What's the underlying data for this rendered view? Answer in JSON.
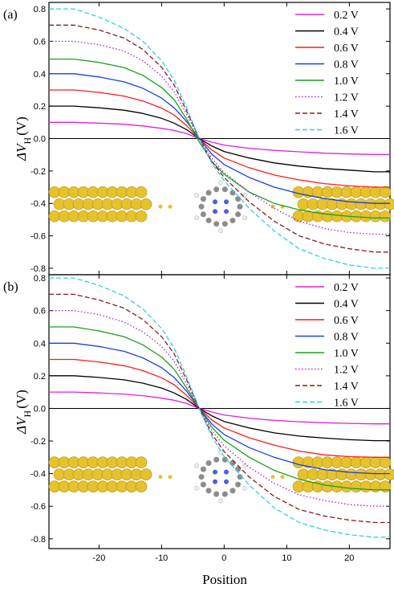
{
  "figure": {
    "xlabel": "Position",
    "ylabel_main": "ΔV",
    "ylabel_sub": "H",
    "ylabel_unit": "(V)"
  },
  "chart_data": [
    {
      "type": "line",
      "panel_label": "(a)",
      "xlim": [
        -28,
        26.5
      ],
      "ylim": [
        -0.84,
        0.84
      ],
      "xticks": [
        -20,
        -10,
        0,
        10,
        20
      ],
      "yticks": [
        0.8,
        0.6,
        0.4,
        0.2,
        0.0,
        -0.2,
        -0.4,
        -0.6,
        -0.8
      ],
      "ytick_labels": [
        "0.8",
        "0.6",
        "0.4",
        "0.2",
        "0.0",
        "-0.2",
        "-0.4",
        "-0.6",
        "-0.8"
      ],
      "legend_position": "top-right",
      "x": [
        -28,
        -24,
        -20,
        -16,
        -13,
        -10,
        -8,
        -6,
        -4,
        -2,
        0,
        4,
        8,
        12,
        16,
        20,
        24,
        26.5
      ],
      "series": [
        {
          "name": "0.2 V",
          "color": "#e020e0",
          "dash": "solid",
          "values": [
            0.1,
            0.1,
            0.095,
            0.088,
            0.078,
            0.063,
            0.05,
            0.03,
            0.0,
            -0.022,
            -0.04,
            -0.06,
            -0.073,
            -0.082,
            -0.09,
            -0.095,
            -0.098,
            -0.098
          ]
        },
        {
          "name": "0.4 V",
          "color": "#000000",
          "dash": "solid",
          "values": [
            0.2,
            0.2,
            0.19,
            0.175,
            0.155,
            0.125,
            0.095,
            0.055,
            0.0,
            -0.045,
            -0.08,
            -0.12,
            -0.15,
            -0.17,
            -0.185,
            -0.195,
            -0.205,
            -0.205
          ]
        },
        {
          "name": "0.6 V",
          "color": "#ff1a1a",
          "dash": "solid",
          "values": [
            0.3,
            0.3,
            0.285,
            0.262,
            0.232,
            0.188,
            0.145,
            0.08,
            0.0,
            -0.07,
            -0.12,
            -0.18,
            -0.225,
            -0.255,
            -0.278,
            -0.292,
            -0.3,
            -0.3
          ]
        },
        {
          "name": "0.8 V",
          "color": "#1a3fe0",
          "dash": "solid",
          "values": [
            0.4,
            0.4,
            0.38,
            0.35,
            0.31,
            0.25,
            0.19,
            0.105,
            0.0,
            -0.095,
            -0.16,
            -0.24,
            -0.3,
            -0.34,
            -0.37,
            -0.39,
            -0.4,
            -0.4
          ]
        },
        {
          "name": "1.0 V",
          "color": "#1aa01a",
          "dash": "solid",
          "values": [
            0.49,
            0.49,
            0.47,
            0.438,
            0.39,
            0.315,
            0.24,
            0.12,
            -0.02,
            -0.14,
            -0.22,
            -0.33,
            -0.4,
            -0.44,
            -0.465,
            -0.48,
            -0.49,
            -0.49
          ]
        },
        {
          "name": "1.2 V",
          "color": "#a020e0",
          "dash": "dotted",
          "values": [
            0.6,
            0.6,
            0.58,
            0.54,
            0.48,
            0.385,
            0.29,
            0.15,
            0.0,
            -0.12,
            -0.21,
            -0.33,
            -0.43,
            -0.51,
            -0.555,
            -0.58,
            -0.59,
            -0.59
          ]
        },
        {
          "name": "1.4 V",
          "color": "#8b1a1a",
          "dash": "dashed",
          "values": [
            0.7,
            0.7,
            0.67,
            0.62,
            0.55,
            0.44,
            0.33,
            0.17,
            0.0,
            -0.14,
            -0.24,
            -0.39,
            -0.51,
            -0.6,
            -0.65,
            -0.68,
            -0.7,
            -0.7
          ]
        },
        {
          "name": "1.6 V",
          "color": "#30d0e0",
          "dash": "dashed",
          "values": [
            0.8,
            0.8,
            0.75,
            0.68,
            0.6,
            0.48,
            0.36,
            0.19,
            0.0,
            -0.15,
            -0.26,
            -0.43,
            -0.57,
            -0.68,
            -0.74,
            -0.78,
            -0.8,
            -0.8
          ]
        }
      ]
    },
    {
      "type": "line",
      "panel_label": "(b)",
      "xlim": [
        -28,
        26.5
      ],
      "ylim": [
        -0.86,
        0.82
      ],
      "xticks": [
        -20,
        -10,
        0,
        10,
        20
      ],
      "xtick_labels": [
        "-20",
        "-10",
        "0",
        "10",
        "20"
      ],
      "yticks": [
        0.8,
        0.6,
        0.4,
        0.2,
        0.0,
        -0.2,
        -0.4,
        -0.6,
        -0.8
      ],
      "ytick_labels": [
        "0.8",
        "0.6",
        "0.4",
        "0.2",
        "0.0",
        "-0.2",
        "-0.4",
        "-0.6",
        "-0.8"
      ],
      "legend_position": "top-right",
      "x": [
        -28,
        -24,
        -20,
        -16,
        -13,
        -10,
        -8,
        -6,
        -4,
        -2,
        0,
        4,
        8,
        12,
        16,
        20,
        24,
        26.5
      ],
      "series": [
        {
          "name": "0.2 V",
          "color": "#e020e0",
          "dash": "solid",
          "values": [
            0.1,
            0.1,
            0.095,
            0.088,
            0.078,
            0.063,
            0.05,
            0.03,
            0.0,
            -0.022,
            -0.04,
            -0.06,
            -0.073,
            -0.082,
            -0.088,
            -0.092,
            -0.095,
            -0.095
          ]
        },
        {
          "name": "0.4 V",
          "color": "#000000",
          "dash": "solid",
          "values": [
            0.2,
            0.2,
            0.19,
            0.175,
            0.155,
            0.125,
            0.095,
            0.055,
            0.0,
            -0.045,
            -0.08,
            -0.12,
            -0.15,
            -0.17,
            -0.182,
            -0.192,
            -0.198,
            -0.198
          ]
        },
        {
          "name": "0.6 V",
          "color": "#ff1a1a",
          "dash": "solid",
          "values": [
            0.3,
            0.3,
            0.285,
            0.262,
            0.232,
            0.188,
            0.145,
            0.08,
            0.0,
            -0.07,
            -0.12,
            -0.18,
            -0.225,
            -0.262,
            -0.285,
            -0.296,
            -0.3,
            -0.3
          ]
        },
        {
          "name": "0.8 V",
          "color": "#1a3fe0",
          "dash": "solid",
          "values": [
            0.4,
            0.4,
            0.38,
            0.35,
            0.31,
            0.25,
            0.19,
            0.105,
            0.0,
            -0.095,
            -0.16,
            -0.24,
            -0.3,
            -0.345,
            -0.375,
            -0.392,
            -0.4,
            -0.4
          ]
        },
        {
          "name": "1.0 V",
          "color": "#1aa01a",
          "dash": "solid",
          "values": [
            0.5,
            0.5,
            0.475,
            0.44,
            0.39,
            0.315,
            0.24,
            0.125,
            0.0,
            -0.115,
            -0.195,
            -0.3,
            -0.38,
            -0.435,
            -0.47,
            -0.49,
            -0.5,
            -0.5
          ]
        },
        {
          "name": "1.2 V",
          "color": "#a020e0",
          "dash": "dotted",
          "values": [
            0.6,
            0.6,
            0.575,
            0.53,
            0.47,
            0.38,
            0.29,
            0.15,
            0.0,
            -0.135,
            -0.23,
            -0.36,
            -0.46,
            -0.53,
            -0.565,
            -0.59,
            -0.6,
            -0.6
          ]
        },
        {
          "name": "1.4 V",
          "color": "#8b1a1a",
          "dash": "dashed",
          "values": [
            0.7,
            0.7,
            0.665,
            0.615,
            0.545,
            0.44,
            0.335,
            0.175,
            0.0,
            -0.155,
            -0.265,
            -0.42,
            -0.54,
            -0.62,
            -0.66,
            -0.685,
            -0.7,
            -0.7
          ]
        },
        {
          "name": "1.6 V",
          "color": "#30d0e0",
          "dash": "dashed",
          "values": [
            0.8,
            0.8,
            0.755,
            0.69,
            0.61,
            0.49,
            0.37,
            0.195,
            0.0,
            -0.17,
            -0.295,
            -0.47,
            -0.61,
            -0.7,
            -0.745,
            -0.775,
            -0.79,
            -0.79
          ]
        }
      ]
    }
  ]
}
